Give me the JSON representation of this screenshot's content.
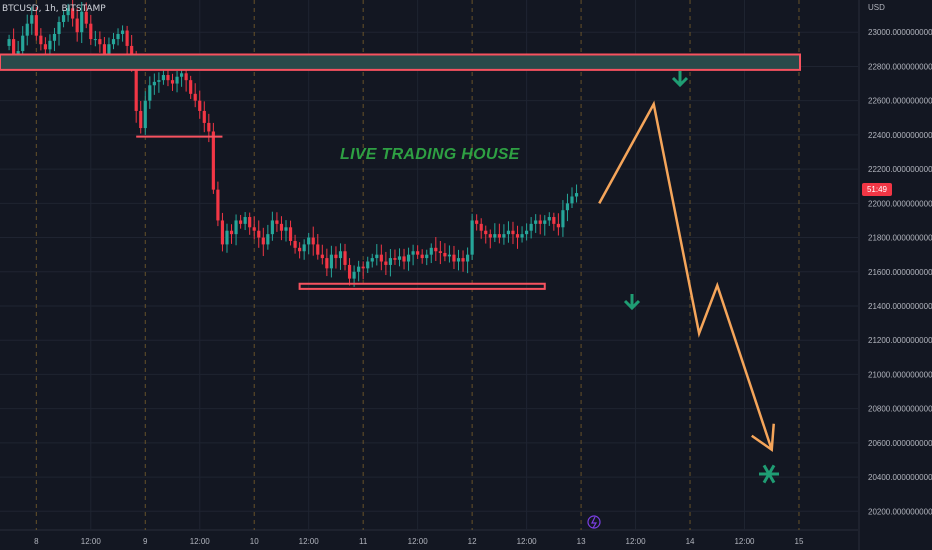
{
  "header": {
    "symbol": "BTCUSD, 1h, BITSTAMP"
  },
  "annotation": {
    "watermark_text": "LIVE TRADING HOUSE"
  },
  "price_scale": {
    "currency": "USD",
    "current_price_tag": "51:49"
  },
  "colors": {
    "background": "#131722",
    "grid": "#1f2431",
    "session_line": "#8a6a2c",
    "bull": "#26a69a",
    "bear": "#f23645",
    "zone_fill": "#2a4a4a",
    "zone_border": "#f7525f",
    "forecast_path": "#f5a55a",
    "arrow": "#1f9d73"
  },
  "icons": [
    "chevron-down-icon",
    "chevron-down-icon",
    "asterisk-icon",
    "lightning-icon"
  ],
  "chart_data": {
    "type": "candlestick",
    "title": "BTCUSD, 1h, BITSTAMP",
    "y_axis": {
      "label": "USD",
      "ticks": [
        23000,
        22800,
        22600,
        22400,
        22200,
        22000,
        21800,
        21600,
        21400,
        21200,
        21000,
        20800,
        20600,
        20400,
        20200
      ],
      "tick_labels": [
        "23000.000000000",
        "22800.000000000",
        "22600.000000000",
        "22400.000000000",
        "22200.000000000",
        "22000.000000000",
        "21800.000000000",
        "21600.000000000",
        "21400.000000000",
        "21200.000000000",
        "21000.000000000",
        "20800.000000000",
        "20600.000000000",
        "20400.000000000",
        "20200.000000000"
      ],
      "range": [
        20120,
        23130
      ]
    },
    "x_axis": {
      "tick_labels": [
        "8",
        "12:00",
        "9",
        "12:00",
        "10",
        "12:00",
        "11",
        "12:00",
        "12",
        "12:00",
        "13",
        "12:00",
        "14",
        "12:00",
        "15"
      ],
      "range_hours": [
        -8,
        181
      ],
      "tick_hours": [
        0,
        12,
        24,
        36,
        48,
        60,
        72,
        84,
        96,
        108,
        120,
        132,
        144,
        156,
        168
      ]
    },
    "series_close": [
      22960,
      22860,
      22890,
      22980,
      23050,
      23100,
      22980,
      22930,
      22900,
      22950,
      22990,
      23060,
      23100,
      23140,
      23080,
      23000,
      23120,
      23050,
      22960,
      22960,
      22930,
      22860,
      22930,
      22960,
      22990,
      23010,
      22920,
      22830,
      22540,
      22440,
      22600,
      22690,
      22710,
      22720,
      22750,
      22720,
      22700,
      22740,
      22760,
      22720,
      22640,
      22600,
      22540,
      22470,
      22420,
      22080,
      21900,
      21760,
      21840,
      21820,
      21900,
      21880,
      21920,
      21860,
      21840,
      21800,
      21760,
      21820,
      21900,
      21880,
      21840,
      21860,
      21780,
      21740,
      21720,
      21760,
      21800,
      21760,
      21700,
      21680,
      21620,
      21700,
      21680,
      21720,
      21640,
      21560,
      21600,
      21630,
      21620,
      21660,
      21680,
      21700,
      21660,
      21640,
      21680,
      21670,
      21690,
      21660,
      21700,
      21720,
      21700,
      21680,
      21700,
      21740,
      21720,
      21710,
      21690,
      21700,
      21660,
      21680,
      21660,
      21700,
      21900,
      21880,
      21840,
      21820,
      21800,
      21820,
      21800,
      21820,
      21840,
      21820,
      21800,
      21820,
      21840,
      21880,
      21900,
      21880,
      21900,
      21920,
      21880,
      21860,
      21960,
      22000,
      22040,
      22060
    ],
    "support_resistance": [
      {
        "type": "zone",
        "from": 22780,
        "to": 22870
      },
      {
        "type": "level",
        "value": 22390
      },
      {
        "type": "zone",
        "from": 21500,
        "to": 21530
      }
    ],
    "forecast_path": [
      {
        "hour": 124,
        "price": 22000
      },
      {
        "hour": 136,
        "price": 22580
      },
      {
        "hour": 146,
        "price": 21240
      },
      {
        "hour": 150,
        "price": 21520
      },
      {
        "hour": 162,
        "price": 20560
      }
    ]
  }
}
